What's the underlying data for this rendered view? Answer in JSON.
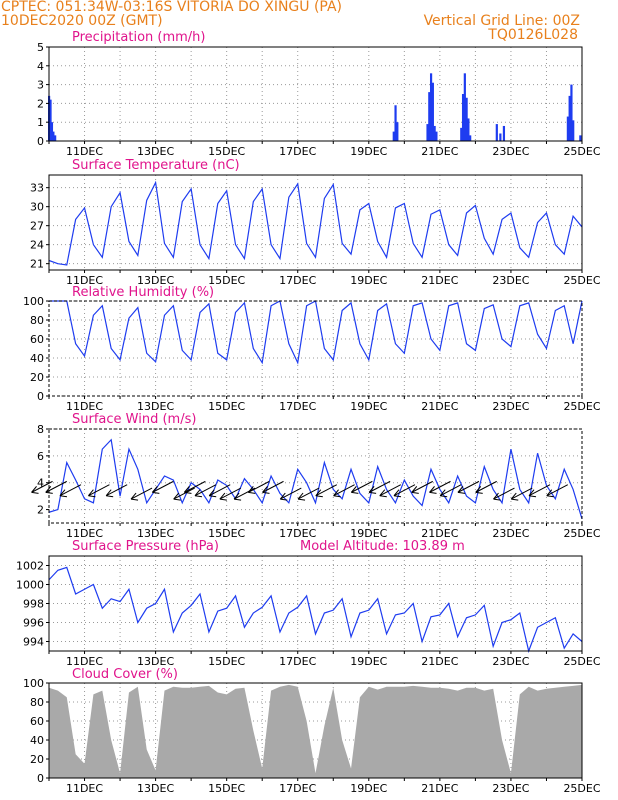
{
  "header": {
    "line1": "CPTEC:   051:34W-03:16S   VITORIA DO XINGU (PA)",
    "line2": "10DEC2020 00Z (GMT)",
    "grid_note": "Vertical Grid Line: 00Z",
    "code": "TQ0126L028"
  },
  "colors": {
    "header_text": "#e8801c",
    "panel_title": "#e0148c",
    "series_line": "#1e3cf0",
    "precip_bar": "#1e3cf0",
    "cloud_fill": "#a9a9a9",
    "wind_arrow": "#000000"
  },
  "x_axis": {
    "start": "10DEC2020 00Z",
    "end": "25DEC2020 00Z",
    "day_step": 1,
    "tick_labels": [
      "11DEC",
      "13DEC",
      "15DEC",
      "17DEC",
      "19DEC",
      "21DEC",
      "23DEC",
      "25DEC"
    ]
  },
  "chart_data": [
    {
      "type": "bar",
      "title": "Precipitation (mm/h)",
      "ylim": [
        0,
        5
      ],
      "yticks": [
        0,
        1,
        2,
        3,
        4,
        5
      ],
      "grid": true,
      "x_unit": "day of December",
      "bars": [
        [
          10.0,
          2.4
        ],
        [
          10.04,
          2.2
        ],
        [
          10.08,
          1.0
        ],
        [
          10.12,
          0.5
        ],
        [
          10.17,
          0.3
        ],
        [
          19.7,
          0.5
        ],
        [
          19.75,
          1.9
        ],
        [
          19.8,
          1.0
        ],
        [
          20.65,
          0.9
        ],
        [
          20.7,
          2.6
        ],
        [
          20.75,
          3.6
        ],
        [
          20.8,
          3.1
        ],
        [
          20.85,
          0.8
        ],
        [
          20.9,
          0.5
        ],
        [
          21.6,
          0.7
        ],
        [
          21.65,
          2.5
        ],
        [
          21.7,
          3.6
        ],
        [
          21.75,
          2.3
        ],
        [
          21.8,
          1.2
        ],
        [
          21.85,
          0.3
        ],
        [
          22.6,
          0.9
        ],
        [
          22.7,
          0.4
        ],
        [
          22.8,
          0.8
        ],
        [
          24.6,
          1.3
        ],
        [
          24.65,
          2.4
        ],
        [
          24.7,
          3.0
        ],
        [
          24.75,
          1.1
        ],
        [
          24.95,
          0.3
        ]
      ]
    },
    {
      "type": "line",
      "title": "Surface Temperature (nC)",
      "ylim": [
        20,
        35
      ],
      "yticks": [
        21,
        24,
        27,
        30,
        33
      ],
      "grid": true,
      "x": [
        10.0,
        10.25,
        10.5,
        10.75,
        11.0,
        11.25,
        11.5,
        11.75,
        12.0,
        12.25,
        12.5,
        12.75,
        13.0,
        13.25,
        13.5,
        13.75,
        14.0,
        14.25,
        14.5,
        14.75,
        15.0,
        15.25,
        15.5,
        15.75,
        16.0,
        16.25,
        16.5,
        16.75,
        17.0,
        17.25,
        17.5,
        17.75,
        18.0,
        18.25,
        18.5,
        18.75,
        19.0,
        19.25,
        19.5,
        19.75,
        20.0,
        20.25,
        20.5,
        20.75,
        21.0,
        21.25,
        21.5,
        21.75,
        22.0,
        22.25,
        22.5,
        22.75,
        23.0,
        23.25,
        23.5,
        23.75,
        24.0,
        24.25,
        24.5,
        24.75,
        25.0
      ],
      "y": [
        21.5,
        21.0,
        20.8,
        28.0,
        29.8,
        24.0,
        22.0,
        30.0,
        32.2,
        24.5,
        22.3,
        31.0,
        33.8,
        24.2,
        22.0,
        30.8,
        32.8,
        24.0,
        21.8,
        30.5,
        32.5,
        24.0,
        21.8,
        30.8,
        32.8,
        24.0,
        21.8,
        31.5,
        33.6,
        24.2,
        22.0,
        31.3,
        33.5,
        24.2,
        22.5,
        29.5,
        30.5,
        24.5,
        22.0,
        29.8,
        30.5,
        24.2,
        22.0,
        28.8,
        29.5,
        24.0,
        22.3,
        29.0,
        30.2,
        25.0,
        22.5,
        28.0,
        29.0,
        23.5,
        22.0,
        27.5,
        29.0,
        24.0,
        22.5,
        28.5,
        26.8
      ]
    },
    {
      "type": "line",
      "title": "Relative Humidity (%)",
      "ylim": [
        0,
        100
      ],
      "yticks": [
        0,
        20,
        40,
        60,
        80,
        100
      ],
      "grid": true,
      "x": [
        10.0,
        10.25,
        10.5,
        10.75,
        11.0,
        11.25,
        11.5,
        11.75,
        12.0,
        12.25,
        12.5,
        12.75,
        13.0,
        13.25,
        13.5,
        13.75,
        14.0,
        14.25,
        14.5,
        14.75,
        15.0,
        15.25,
        15.5,
        15.75,
        16.0,
        16.25,
        16.5,
        16.75,
        17.0,
        17.25,
        17.5,
        17.75,
        18.0,
        18.25,
        18.5,
        18.75,
        19.0,
        19.25,
        19.5,
        19.75,
        20.0,
        20.25,
        20.5,
        20.75,
        21.0,
        21.25,
        21.5,
        21.75,
        22.0,
        22.25,
        22.5,
        22.75,
        23.0,
        23.25,
        23.5,
        23.75,
        24.0,
        24.25,
        24.5,
        24.75,
        25.0
      ],
      "y": [
        100,
        100,
        100,
        55,
        42,
        85,
        95,
        50,
        38,
        82,
        93,
        45,
        36,
        85,
        95,
        48,
        38,
        88,
        97,
        45,
        38,
        88,
        98,
        50,
        35,
        95,
        100,
        55,
        35,
        95,
        100,
        50,
        38,
        90,
        98,
        55,
        38,
        90,
        97,
        55,
        45,
        95,
        98,
        60,
        48,
        95,
        98,
        55,
        48,
        92,
        96,
        60,
        52,
        95,
        98,
        65,
        50,
        90,
        95,
        55,
        100
      ]
    },
    {
      "type": "line",
      "title": "Surface Wind (m/s)",
      "ylim": [
        1,
        8
      ],
      "yticks": [
        2,
        4,
        6,
        8
      ],
      "grid": true,
      "x": [
        10.0,
        10.25,
        10.5,
        10.75,
        11.0,
        11.25,
        11.5,
        11.75,
        12.0,
        12.25,
        12.5,
        12.75,
        13.0,
        13.25,
        13.5,
        13.75,
        14.0,
        14.25,
        14.5,
        14.75,
        15.0,
        15.25,
        15.5,
        15.75,
        16.0,
        16.25,
        16.5,
        16.75,
        17.0,
        17.25,
        17.5,
        17.75,
        18.0,
        18.25,
        18.5,
        18.75,
        19.0,
        19.25,
        19.5,
        19.75,
        20.0,
        20.25,
        20.5,
        20.75,
        21.0,
        21.25,
        21.5,
        21.75,
        22.0,
        22.25,
        22.5,
        22.75,
        23.0,
        23.25,
        23.5,
        23.75,
        24.0,
        24.25,
        24.5,
        24.75,
        25.0
      ],
      "y": [
        1.8,
        2.0,
        5.5,
        4.2,
        2.8,
        2.5,
        6.5,
        7.2,
        3.0,
        6.5,
        5.0,
        2.5,
        3.5,
        4.5,
        4.2,
        2.5,
        4.0,
        3.5,
        2.5,
        4.2,
        3.8,
        2.8,
        4.3,
        3.5,
        2.5,
        4.5,
        3.2,
        2.5,
        5.0,
        4.0,
        2.5,
        5.5,
        3.5,
        2.8,
        5.0,
        3.2,
        2.5,
        5.2,
        3.5,
        2.5,
        4.2,
        3.0,
        2.3,
        5.0,
        3.5,
        2.5,
        4.5,
        3.0,
        2.5,
        5.2,
        3.5,
        2.5,
        6.5,
        3.5,
        2.5,
        6.2,
        3.8,
        2.8,
        5.0,
        3.5,
        1.3
      ],
      "arrows_x": [
        10.1,
        10.5,
        10.9,
        11.7,
        12.2,
        12.9,
        13.5,
        14.1,
        14.4,
        14.7,
        15.1,
        15.4,
        15.8,
        16.2,
        16.6,
        17.1,
        17.6,
        18.1,
        18.6,
        19.1,
        19.6,
        19.9,
        20.3,
        20.8,
        21.3,
        21.6,
        22.1,
        22.6,
        23.1,
        23.6,
        24.1,
        24.6
      ]
    },
    {
      "type": "line",
      "title": "Surface Pressure (hPa)",
      "annotation": "Model Altitude: 103.89  m",
      "ylim": [
        993,
        1003
      ],
      "yticks": [
        994,
        996,
        998,
        1000,
        1002
      ],
      "grid": true,
      "x": [
        10.0,
        10.25,
        10.5,
        10.75,
        11.0,
        11.25,
        11.5,
        11.75,
        12.0,
        12.25,
        12.5,
        12.75,
        13.0,
        13.25,
        13.5,
        13.75,
        14.0,
        14.25,
        14.5,
        14.75,
        15.0,
        15.25,
        15.5,
        15.75,
        16.0,
        16.25,
        16.5,
        16.75,
        17.0,
        17.25,
        17.5,
        17.75,
        18.0,
        18.25,
        18.5,
        18.75,
        19.0,
        19.25,
        19.5,
        19.75,
        20.0,
        20.25,
        20.5,
        20.75,
        21.0,
        21.25,
        21.5,
        21.75,
        22.0,
        22.25,
        22.5,
        22.75,
        23.0,
        23.25,
        23.5,
        23.75,
        24.0,
        24.25,
        24.5,
        24.75,
        25.0
      ],
      "y": [
        1000.5,
        1001.5,
        1001.8,
        999.0,
        999.5,
        1000.0,
        997.5,
        998.5,
        998.2,
        999.5,
        996.0,
        997.5,
        998.0,
        999.5,
        995.0,
        997.0,
        997.8,
        999.0,
        995.0,
        997.2,
        997.5,
        998.8,
        995.5,
        997.0,
        997.6,
        998.8,
        995.0,
        997.0,
        997.6,
        998.8,
        994.8,
        997.0,
        997.3,
        998.5,
        994.5,
        997.0,
        997.3,
        998.5,
        994.8,
        996.8,
        997.0,
        998.0,
        994.0,
        996.6,
        996.8,
        998.0,
        994.5,
        996.5,
        996.8,
        997.8,
        993.5,
        996.0,
        996.3,
        997.0,
        993.0,
        995.5,
        996.0,
        996.5,
        993.3,
        994.8,
        994.0
      ]
    },
    {
      "type": "area",
      "title": "Cloud Cover (%)",
      "ylim": [
        0,
        100
      ],
      "yticks": [
        0,
        20,
        40,
        60,
        80,
        100
      ],
      "grid": true,
      "x": [
        10.0,
        10.25,
        10.5,
        10.75,
        11.0,
        11.25,
        11.5,
        11.75,
        12.0,
        12.25,
        12.5,
        12.75,
        13.0,
        13.25,
        13.5,
        13.75,
        14.0,
        14.25,
        14.5,
        14.75,
        15.0,
        15.25,
        15.5,
        15.75,
        16.0,
        16.25,
        16.5,
        16.75,
        17.0,
        17.25,
        17.5,
        17.75,
        18.0,
        18.25,
        18.5,
        18.75,
        19.0,
        19.25,
        19.5,
        19.75,
        20.0,
        20.25,
        20.5,
        20.75,
        21.0,
        21.25,
        21.5,
        21.75,
        22.0,
        22.25,
        22.5,
        22.75,
        23.0,
        23.25,
        23.5,
        23.75,
        24.0,
        24.25,
        24.5,
        24.75,
        25.0
      ],
      "y": [
        95,
        92,
        85,
        25,
        15,
        88,
        92,
        40,
        5,
        90,
        96,
        30,
        8,
        92,
        96,
        95,
        95,
        96,
        97,
        90,
        88,
        94,
        95,
        50,
        10,
        92,
        96,
        98,
        96,
        60,
        5,
        55,
        95,
        40,
        10,
        85,
        96,
        93,
        96,
        96,
        96,
        97,
        96,
        95,
        95,
        94,
        92,
        95,
        95,
        92,
        94,
        40,
        5,
        88,
        96,
        92,
        94,
        95,
        96,
        97,
        98
      ]
    }
  ]
}
